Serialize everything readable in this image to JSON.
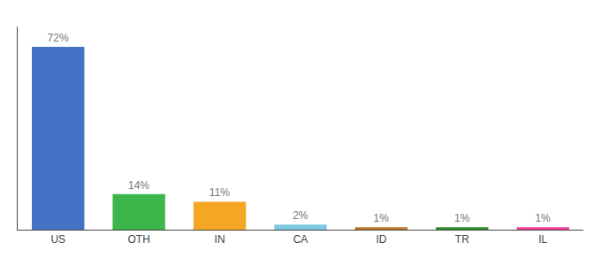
{
  "chart_data": {
    "type": "bar",
    "categories": [
      "US",
      "OTH",
      "IN",
      "CA",
      "ID",
      "TR",
      "IL"
    ],
    "values": [
      72,
      14,
      11,
      2,
      1,
      1,
      1
    ],
    "value_labels": [
      "72%",
      "14%",
      "11%",
      "2%",
      "1%",
      "1%",
      "1%"
    ],
    "colors": [
      "#4472c4",
      "#3cb54a",
      "#f5a623",
      "#7ec8e3",
      "#c0732a",
      "#2e8b2e",
      "#f03c96"
    ],
    "ylim": [
      0,
      80
    ],
    "grid": false,
    "data_labels": true,
    "tick_labels": "x"
  }
}
